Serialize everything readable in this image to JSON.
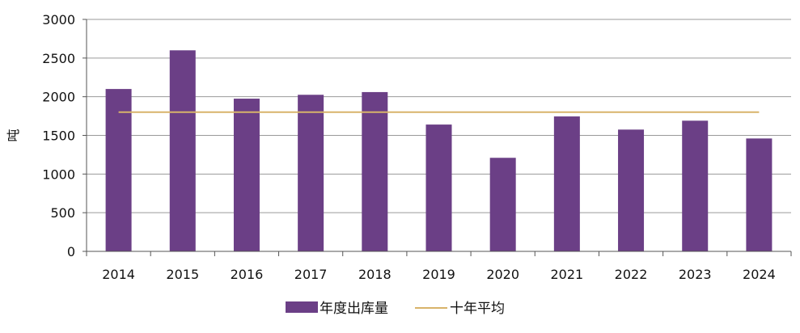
{
  "chart_data": {
    "type": "bar",
    "categories": [
      "2014",
      "2015",
      "2016",
      "2017",
      "2018",
      "2019",
      "2020",
      "2021",
      "2022",
      "2023",
      "2024"
    ],
    "series": [
      {
        "name": "年度出库量",
        "type": "bar",
        "color": "#6b3f86",
        "values": [
          2100,
          2600,
          1975,
          2025,
          2060,
          1640,
          1210,
          1745,
          1575,
          1690,
          1460
        ]
      },
      {
        "name": "十年平均",
        "type": "line",
        "color": "#d8b36a",
        "values": [
          1800,
          1800,
          1800,
          1800,
          1800,
          1800,
          1800,
          1800,
          1800,
          1800,
          1800
        ]
      }
    ],
    "ylabel": "吨",
    "ylim": [
      0,
      3000
    ],
    "yticks": [
      0,
      500,
      1000,
      1500,
      2000,
      2500,
      3000
    ],
    "grid": true,
    "legend": "bottom"
  }
}
